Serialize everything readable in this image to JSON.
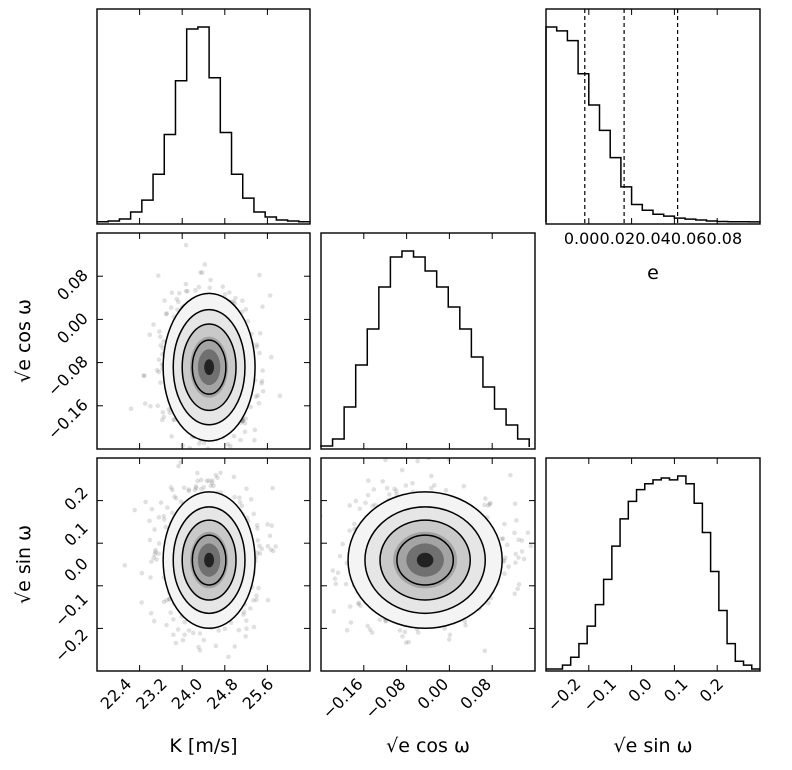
{
  "chart_data": {
    "type": "corner",
    "parameters": [
      {
        "key": "K",
        "label": "K [m/s]"
      },
      {
        "key": "sqrt_e_cos_omega",
        "label": "√e cos ω"
      },
      {
        "key": "sqrt_e_sin_omega",
        "label": "√e sin ω"
      }
    ],
    "panels": [
      {
        "id": "hist-K",
        "type": "histogram",
        "row": 0,
        "col": 0,
        "xlim": [
          22.0,
          25.8
        ],
        "bin_edges": [
          22.0,
          22.2,
          22.4,
          22.6,
          22.8,
          23.0,
          23.2,
          23.4,
          23.6,
          23.8,
          24.0,
          24.2,
          24.4,
          24.6,
          24.8,
          25.0,
          25.2,
          25.4,
          25.6,
          25.8
        ],
        "counts": [
          0.2,
          1,
          3,
          10,
          22,
          48,
          88,
          142,
          194,
          196,
          145,
          90,
          48,
          24,
          10,
          5,
          2,
          1,
          0.2
        ]
      },
      {
        "id": "hist-e",
        "type": "histogram",
        "row": 0,
        "col": 2,
        "xlabel": "e",
        "xlim": [
          0.0,
          0.08
        ],
        "xticks": [
          "0.00",
          "0.02",
          "0.04",
          "0.06",
          "0.08"
        ],
        "bin_edges": [
          0.0,
          0.004,
          0.008,
          0.012,
          0.016,
          0.02,
          0.024,
          0.028,
          0.032,
          0.036,
          0.04,
          0.044,
          0.048,
          0.052,
          0.056,
          0.06,
          0.064,
          0.068,
          0.072,
          0.076,
          0.08
        ],
        "counts": [
          200,
          196,
          186,
          152,
          120,
          94,
          66,
          36,
          18,
          12,
          8,
          6,
          4,
          3,
          2,
          1,
          0.5,
          0.3,
          0.2,
          0.1
        ],
        "quantile_lines": [
          0.0145,
          0.0292,
          0.0492
        ]
      },
      {
        "id": "scatter-K-cos",
        "type": "density2d",
        "row": 1,
        "col": 0,
        "x_param": "K",
        "y_param": "sqrt_e_cos_omega",
        "xlim": [
          22.0,
          25.8
        ],
        "ylim": [
          -0.19,
          0.14
        ],
        "center": [
          24.0,
          -0.065
        ],
        "spread": [
          0.4,
          0.055
        ],
        "yticks": [
          "0.08",
          "0.00",
          "−0.08",
          "−0.16"
        ]
      },
      {
        "id": "hist-cos",
        "type": "histogram",
        "row": 1,
        "col": 1,
        "xlim": [
          -0.24,
          0.13
        ],
        "bin_edges": [
          -0.24,
          -0.22,
          -0.2,
          -0.18,
          -0.16,
          -0.14,
          -0.12,
          -0.1,
          -0.08,
          -0.06,
          -0.04,
          -0.02,
          0.0,
          0.02,
          0.04,
          0.06,
          0.08,
          0.1,
          0.12
        ],
        "counts": [
          1,
          8,
          40,
          82,
          118,
          160,
          190,
          196,
          190,
          176,
          160,
          140,
          118,
          90,
          60,
          38,
          22,
          8
        ]
      },
      {
        "id": "scatter-K-sin",
        "type": "density2d",
        "row": 2,
        "col": 0,
        "x_param": "K",
        "y_param": "sqrt_e_sin_omega",
        "xlim": [
          22.0,
          25.8
        ],
        "ylim": [
          -0.21,
          0.27
        ],
        "center": [
          24.0,
          0.04
        ],
        "spread": [
          0.4,
          0.075
        ],
        "xticks": [
          "22.4",
          "23.2",
          "24.0",
          "24.8",
          "25.6"
        ],
        "yticks": [
          "0.2",
          "0.1",
          "0.0",
          "−0.1",
          "−0.2"
        ]
      },
      {
        "id": "scatter-cos-sin",
        "type": "density2d",
        "row": 2,
        "col": 1,
        "x_param": "sqrt_e_cos_omega",
        "y_param": "sqrt_e_sin_omega",
        "xlim": [
          -0.24,
          0.13
        ],
        "ylim": [
          -0.21,
          0.27
        ],
        "center": [
          -0.06,
          0.04
        ],
        "spread": [
          0.065,
          0.075
        ],
        "xticks": [
          "−0.16",
          "−0.08",
          "0.00",
          "0.08"
        ]
      },
      {
        "id": "hist-sin",
        "type": "histogram",
        "row": 2,
        "col": 2,
        "xlim": [
          -0.26,
          0.26
        ],
        "xticks": [
          "−0.2",
          "−0.1",
          "0.0",
          "0.1",
          "0.2"
        ],
        "bin_edges": [
          -0.26,
          -0.24,
          -0.22,
          -0.2,
          -0.18,
          -0.16,
          -0.14,
          -0.12,
          -0.1,
          -0.08,
          -0.06,
          -0.04,
          -0.02,
          0.0,
          0.02,
          0.04,
          0.06,
          0.08,
          0.1,
          0.12,
          0.14,
          0.16,
          0.18,
          0.2,
          0.22,
          0.24,
          0.26
        ],
        "counts": [
          0,
          0,
          4,
          12,
          26,
          44,
          66,
          92,
          126,
          154,
          172,
          184,
          190,
          194,
          196,
          194,
          198,
          190,
          170,
          140,
          100,
          60,
          26,
          8,
          4,
          0
        ]
      }
    ],
    "axis_labels": {
      "x_bottom": [
        "K [m/s]",
        "√e cos ω",
        "√e sin ω"
      ],
      "y_left_row1": "√e cos ω",
      "y_left_row2": "√e sin ω"
    },
    "style": {
      "line_color": "#000000",
      "point_color": "#555555",
      "background": "#ffffff"
    }
  }
}
